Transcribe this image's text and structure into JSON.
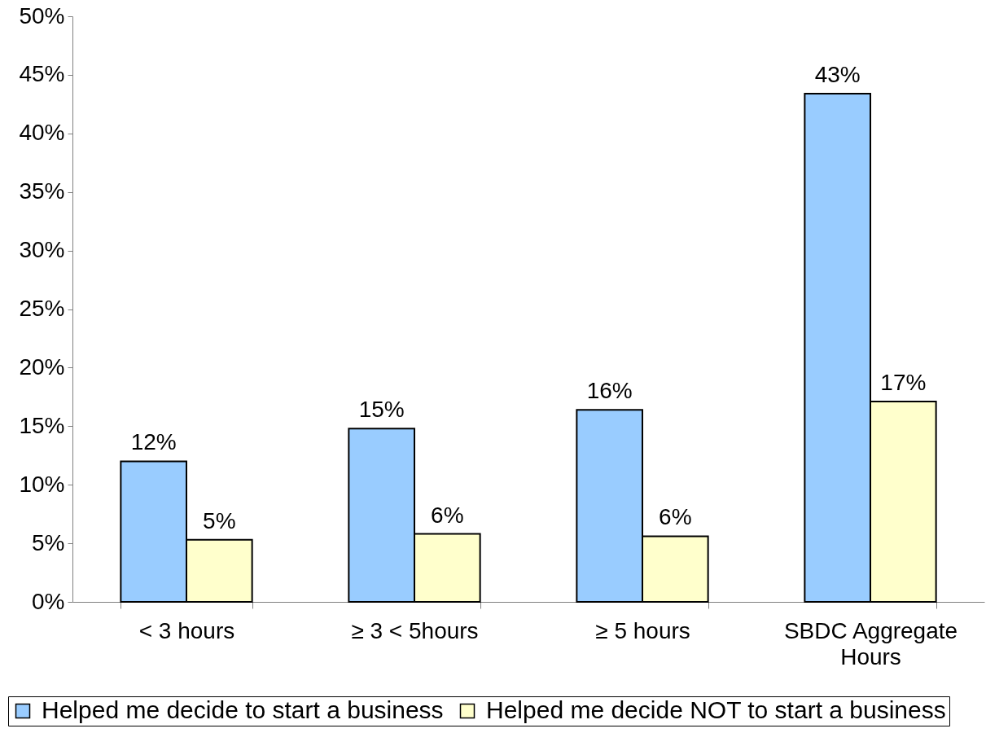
{
  "chart_data": {
    "type": "bar",
    "categories": [
      "< 3 hours",
      "≥ 3 < 5hours",
      "≥ 5 hours",
      "SBDC Aggregate Hours"
    ],
    "series": [
      {
        "name": "Helped me decide to start a business",
        "color": "#99ccff",
        "values": [
          12.0,
          14.8,
          16.4,
          43.4
        ],
        "value_labels": [
          "12%",
          "15%",
          "16%",
          "43%"
        ]
      },
      {
        "name": "Helped me decide NOT to start a business",
        "color": "#ffffcc",
        "values": [
          5.3,
          5.8,
          5.6,
          17.1
        ],
        "value_labels": [
          "5%",
          "6%",
          "6%",
          "17%"
        ]
      }
    ],
    "ylim": [
      0,
      50
    ],
    "yticks": [
      {
        "value": 0,
        "label": "0%"
      },
      {
        "value": 5,
        "label": "5%"
      },
      {
        "value": 10,
        "label": "10%"
      },
      {
        "value": 15,
        "label": "15%"
      },
      {
        "value": 20,
        "label": "20%"
      },
      {
        "value": 25,
        "label": "25%"
      },
      {
        "value": 30,
        "label": "30%"
      },
      {
        "value": 35,
        "label": "35%"
      },
      {
        "value": 40,
        "label": "40%"
      },
      {
        "value": 45,
        "label": "45%"
      },
      {
        "value": 50,
        "label": "50%"
      }
    ],
    "grid": false,
    "legend": "bottom"
  }
}
